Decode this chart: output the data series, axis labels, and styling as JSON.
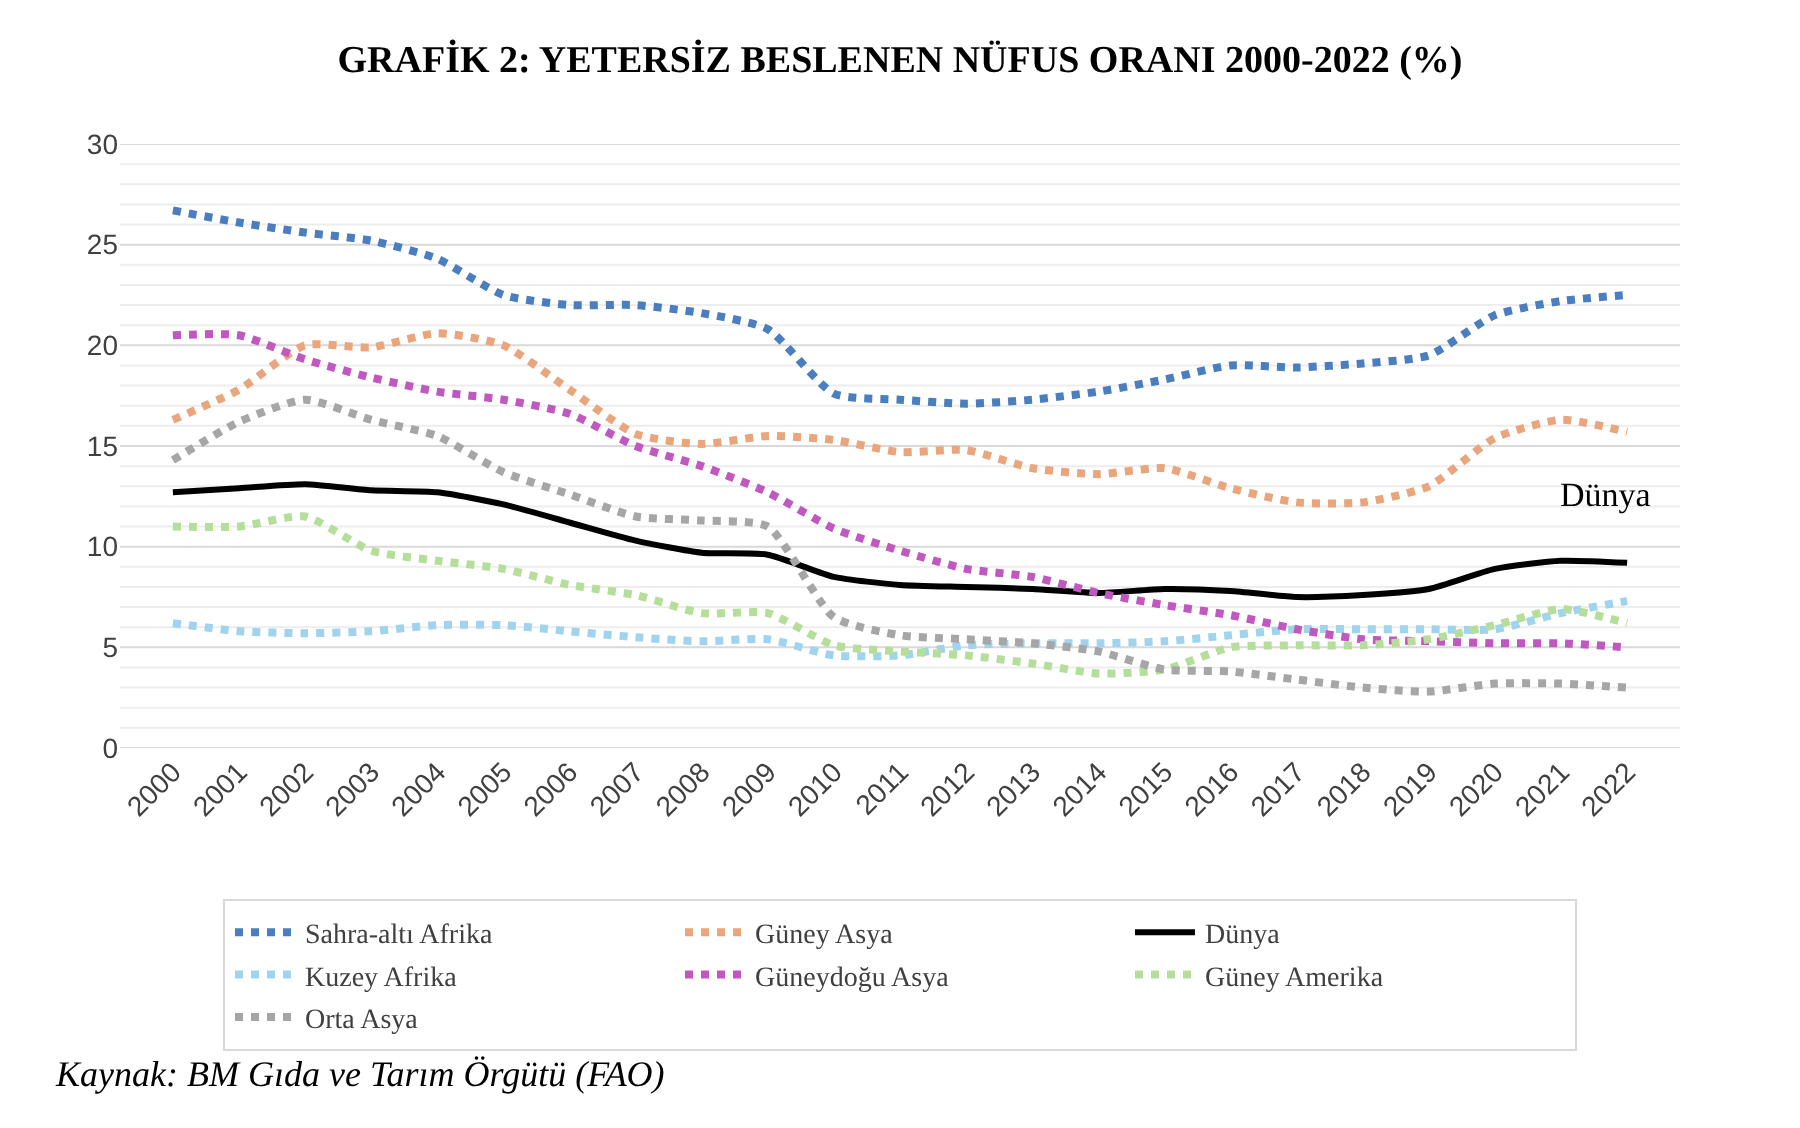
{
  "chart_data": {
    "type": "line",
    "title": "GRAFİK 2: YETERSİZ BESLENEN NÜFUS ORANI 2000-2022 (%)",
    "categories": [
      "2000",
      "2001",
      "2002",
      "2003",
      "2004",
      "2005",
      "2006",
      "2007",
      "2008",
      "2009",
      "2010",
      "2011",
      "2012",
      "2013",
      "2014",
      "2015",
      "2016",
      "2017",
      "2018",
      "2019",
      "2020",
      "2021",
      "2022"
    ],
    "series": [
      {
        "name": "Sahra-altı Afrika",
        "color": "#4a7ebf",
        "line_style": "dotted",
        "values": [
          26.7,
          26.1,
          25.6,
          25.2,
          24.3,
          22.5,
          22.0,
          22.0,
          21.6,
          20.8,
          17.6,
          17.3,
          17.1,
          17.3,
          17.7,
          18.3,
          19.0,
          18.9,
          19.1,
          19.5,
          21.5,
          22.2,
          22.5
        ]
      },
      {
        "name": "Güney Asya",
        "color": "#e9a57c",
        "line_style": "dotted",
        "values": [
          16.3,
          17.8,
          20.0,
          19.9,
          20.6,
          20.0,
          17.8,
          15.6,
          15.1,
          15.5,
          15.3,
          14.7,
          14.8,
          13.9,
          13.6,
          13.9,
          12.9,
          12.2,
          12.2,
          13.0,
          15.4,
          16.3,
          15.7
        ]
      },
      {
        "name": "Dünya",
        "color": "#000000",
        "line_style": "solid",
        "values": [
          12.7,
          12.9,
          13.1,
          12.8,
          12.7,
          12.1,
          11.2,
          10.3,
          9.7,
          9.6,
          8.5,
          8.1,
          8.0,
          7.9,
          7.7,
          7.9,
          7.8,
          7.5,
          7.6,
          7.9,
          8.9,
          9.3,
          9.2
        ]
      },
      {
        "name": "Kuzey Afrika",
        "color": "#9fd3ee",
        "line_style": "dotted",
        "values": [
          6.2,
          5.8,
          5.7,
          5.8,
          6.1,
          6.1,
          5.8,
          5.5,
          5.3,
          5.4,
          4.6,
          4.6,
          5.1,
          5.2,
          5.2,
          5.3,
          5.6,
          5.9,
          5.9,
          5.9,
          5.9,
          6.7,
          7.3
        ]
      },
      {
        "name": "Güneydoğu Asya",
        "color": "#c058c0",
        "line_style": "dotted",
        "values": [
          20.5,
          20.5,
          19.3,
          18.4,
          17.7,
          17.3,
          16.6,
          15.0,
          14.0,
          12.7,
          10.9,
          9.8,
          8.9,
          8.5,
          7.7,
          7.1,
          6.6,
          5.9,
          5.4,
          5.3,
          5.2,
          5.2,
          5.0
        ]
      },
      {
        "name": "Güney Amerika",
        "color": "#b5de9a",
        "line_style": "dotted",
        "values": [
          11.0,
          11.0,
          11.5,
          9.8,
          9.3,
          8.9,
          8.1,
          7.6,
          6.7,
          6.7,
          5.1,
          4.8,
          4.6,
          4.2,
          3.7,
          3.9,
          5.0,
          5.1,
          5.1,
          5.4,
          6.1,
          6.9,
          6.2
        ]
      },
      {
        "name": "Orta Asya",
        "color": "#a6a6a6",
        "line_style": "dotted",
        "values": [
          14.3,
          16.2,
          17.3,
          16.3,
          15.5,
          13.7,
          12.6,
          11.5,
          11.3,
          11.0,
          6.5,
          5.6,
          5.4,
          5.2,
          4.8,
          3.9,
          3.8,
          3.4,
          3.0,
          2.8,
          3.2,
          3.2,
          3.0
        ]
      }
    ],
    "ylim": [
      0,
      30
    ],
    "yticks": [
      0,
      {
        "value": 1,
        "label": null
      },
      {
        "value": 2,
        "label": null
      },
      {
        "value": 3,
        "label": null
      },
      {
        "value": 4,
        "label": null
      },
      5,
      {
        "value": 6,
        "label": null
      },
      {
        "value": 7,
        "label": null
      },
      {
        "value": 8,
        "label": null
      },
      {
        "value": 9,
        "label": null
      },
      10,
      {
        "value": 11,
        "label": null
      },
      {
        "value": 12,
        "label": null
      },
      {
        "value": 13,
        "label": null
      },
      {
        "value": 14,
        "label": null
      },
      15,
      {
        "value": 16,
        "label": null
      },
      {
        "value": 17,
        "label": null
      },
      {
        "value": 18,
        "label": null
      },
      {
        "value": 19,
        "label": null
      },
      20,
      {
        "value": 21,
        "label": null
      },
      {
        "value": 22,
        "label": null
      },
      {
        "value": 23,
        "label": null
      },
      {
        "value": 24,
        "label": null
      },
      25,
      {
        "value": 26,
        "label": null
      },
      {
        "value": 27,
        "label": null
      },
      {
        "value": 28,
        "label": null
      },
      {
        "value": 29,
        "label": null
      },
      30
    ],
    "grid": "y",
    "legend": "bottom",
    "marker": "none",
    "annotations": [
      "Dünya",
      "Kaynak: BM Gıda ve Tarım Örgütü (FAO)"
    ]
  }
}
